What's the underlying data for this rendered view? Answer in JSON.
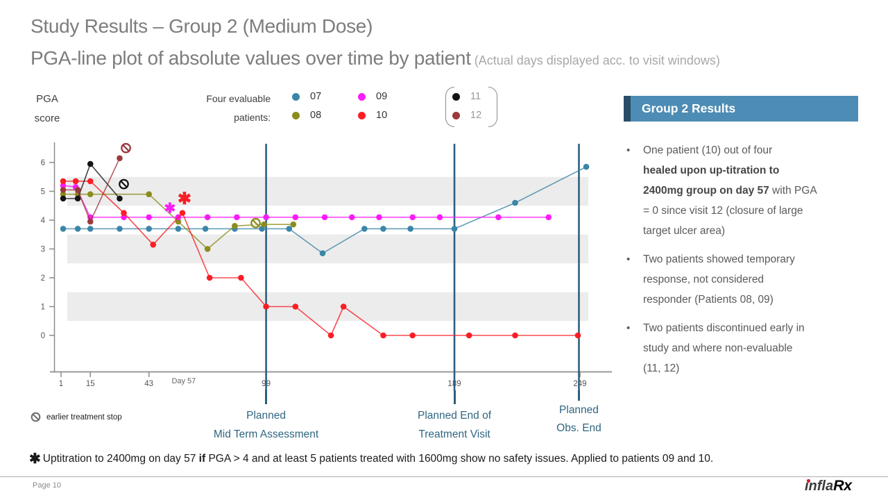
{
  "slide": {
    "title_line1": "Study Results – Group 2 (Medium Dose)",
    "title_line2": "PGA-line plot of absolute values over time by patient",
    "title_line2_suffix": " (Actual days displayed acc. to visit windows)",
    "page_label": "Page 10",
    "logo_part1": "infla",
    "logo_part2": "Rx"
  },
  "legend": {
    "axis_label_line1": "PGA",
    "axis_label_line2": "score",
    "caption_line1": "Four evaluable",
    "caption_line2": "patients:",
    "patients": [
      {
        "id": "07",
        "color": "#3b86a8",
        "evaluable": true
      },
      {
        "id": "08",
        "color": "#8c8c1e",
        "evaluable": true
      },
      {
        "id": "09",
        "color": "#fa1dfa",
        "evaluable": true
      },
      {
        "id": "10",
        "color": "#fa1d24",
        "evaluable": true
      },
      {
        "id": "11",
        "color": "#141414",
        "evaluable": false
      },
      {
        "id": "12",
        "color": "#9c393c",
        "evaluable": false
      }
    ]
  },
  "chart_data": {
    "type": "line",
    "ylabel": "PGA score",
    "xlabel": "Day",
    "ylim": [
      0,
      6
    ],
    "y_ticks": [
      0,
      1,
      2,
      3,
      4,
      5,
      6
    ],
    "x_ticks": [
      {
        "day": 1,
        "label": "1"
      },
      {
        "day": 15,
        "label": "15"
      },
      {
        "day": 43,
        "label": "43"
      },
      {
        "day": 99,
        "label": "99"
      },
      {
        "day": 189,
        "label": "189"
      },
      {
        "day": 249,
        "label": "249"
      }
    ],
    "x_extra_label": {
      "day": 55,
      "label": "Day 57"
    },
    "xlim_days": [
      1,
      253
    ],
    "band_day_range": [
      4,
      253
    ],
    "shaded_bands": [
      [
        0.5,
        1.5
      ],
      [
        2.5,
        3.5
      ],
      [
        4.5,
        5.5
      ]
    ],
    "band_color": "#ececec",
    "vline_days": [
      99,
      189,
      248.5
    ],
    "vline_color": "#2d5f7e",
    "asterisk_char": "✱",
    "series": [
      {
        "patient": "07",
        "color": "#3b86a8",
        "points": [
          [
            2,
            3.7
          ],
          [
            9,
            3.7
          ],
          [
            15,
            3.7
          ],
          [
            29,
            3.7
          ],
          [
            43,
            3.7
          ],
          [
            57,
            3.7
          ],
          [
            70,
            3.7
          ],
          [
            84,
            3.7
          ],
          [
            97,
            3.7
          ],
          [
            110,
            3.7
          ],
          [
            126,
            2.85
          ],
          [
            146,
            3.7
          ],
          [
            155,
            3.7
          ],
          [
            168,
            3.7
          ],
          [
            189,
            3.7
          ],
          [
            218,
            4.6
          ],
          [
            252,
            5.85
          ]
        ]
      },
      {
        "patient": "08",
        "color": "#8c8c1e",
        "points": [
          [
            2,
            4.9
          ],
          [
            9,
            4.9
          ],
          [
            15,
            4.9
          ],
          [
            43,
            4.9
          ],
          [
            57,
            3.95
          ],
          [
            71,
            3.0
          ],
          [
            84,
            3.8
          ],
          [
            98,
            3.85
          ],
          [
            112,
            3.85
          ]
        ],
        "stop_sign": [
          94,
          3.9
        ]
      },
      {
        "patient": "09",
        "color": "#fa1dfa",
        "points": [
          [
            2,
            5.2
          ],
          [
            8,
            5.15
          ],
          [
            15,
            4.1
          ],
          [
            31,
            4.1
          ],
          [
            43,
            4.1
          ],
          [
            57,
            4.1
          ],
          [
            71,
            4.1
          ],
          [
            85,
            4.1
          ],
          [
            99,
            4.1
          ],
          [
            113,
            4.1
          ],
          [
            127,
            4.1
          ],
          [
            140,
            4.1
          ],
          [
            153,
            4.1
          ],
          [
            169,
            4.1
          ],
          [
            182,
            4.1
          ],
          [
            210,
            4.1
          ],
          [
            234,
            4.1
          ]
        ],
        "asterisk": [
          53,
          4.42,
          20
        ]
      },
      {
        "patient": "10",
        "color": "#fa1d24",
        "points": [
          [
            2,
            5.35
          ],
          [
            8,
            5.35
          ],
          [
            15,
            5.35
          ],
          [
            31,
            4.25
          ],
          [
            45,
            3.15
          ],
          [
            59,
            4.25
          ],
          [
            72,
            2.0
          ],
          [
            87,
            2.0
          ],
          [
            99,
            1.0
          ],
          [
            113,
            1.0
          ],
          [
            130,
            0.0
          ],
          [
            136,
            1.0
          ],
          [
            155,
            0.0
          ],
          [
            169,
            0.0
          ],
          [
            196,
            0.0
          ],
          [
            218,
            0.0
          ],
          [
            248,
            0.0
          ]
        ],
        "asterisk": [
          60,
          4.72,
          24
        ]
      },
      {
        "patient": "11",
        "color": "#141414",
        "points": [
          [
            2,
            4.75
          ],
          [
            9,
            4.75
          ],
          [
            15,
            5.95
          ],
          [
            29,
            4.75
          ]
        ],
        "stop_sign": [
          31,
          5.25
        ]
      },
      {
        "patient": "12",
        "color": "#9c393c",
        "points": [
          [
            2,
            5.05
          ],
          [
            9,
            5.05
          ],
          [
            15,
            3.95
          ],
          [
            29,
            6.15
          ]
        ],
        "stop_sign": [
          32,
          6.5
        ]
      }
    ]
  },
  "annotations": {
    "stop_legend": "earlier treatment stop",
    "milestones": [
      {
        "line1": "Planned",
        "line2": "Mid Term Assessment",
        "day": 99
      },
      {
        "line1": "Planned End of",
        "line2": "Treatment Visit",
        "day": 189
      },
      {
        "line1": "Planned",
        "line2": "Obs. End",
        "day": 248.5
      }
    ]
  },
  "results_panel": {
    "header": "Group 2 Results",
    "header_bg": "#4d8cb4",
    "accent_color": "#2a4d68",
    "bullet_char": "•",
    "bullets": [
      {
        "segments": [
          {
            "t": "One patient (10) out of four",
            "br": 1
          },
          {
            "t": "healed upon up-titration to",
            "b": 1,
            "br": 1
          },
          {
            "t": "2400mg group on day 57",
            "b": 1
          },
          {
            "t": " with PGA",
            "br": 1
          },
          {
            "t": "= 0 since visit 12 (closure of large",
            "br": 1
          },
          {
            "t": "target ulcer area)"
          }
        ]
      },
      {
        "segments": [
          {
            "t": "Two patients showed temporary",
            "br": 1
          },
          {
            "t": "response, not considered",
            "br": 1
          },
          {
            "t": "responder (Patients 08, 09)"
          }
        ]
      },
      {
        "segments": [
          {
            "t": "Two patients discontinued early in",
            "br": 1
          },
          {
            "t": "study and where non-evaluable",
            "br": 1
          },
          {
            "t": "(11, 12)"
          }
        ]
      }
    ]
  },
  "footnote": {
    "star": "✱",
    "segments": [
      {
        "t": "Uptitration to 2400mg on day 57 "
      },
      {
        "t": "if",
        "b": 1
      },
      {
        "t": " PGA > 4 and at least 5 patients treated with 1600mg show no safety issues. Applied to patients 09 and 10."
      }
    ]
  }
}
